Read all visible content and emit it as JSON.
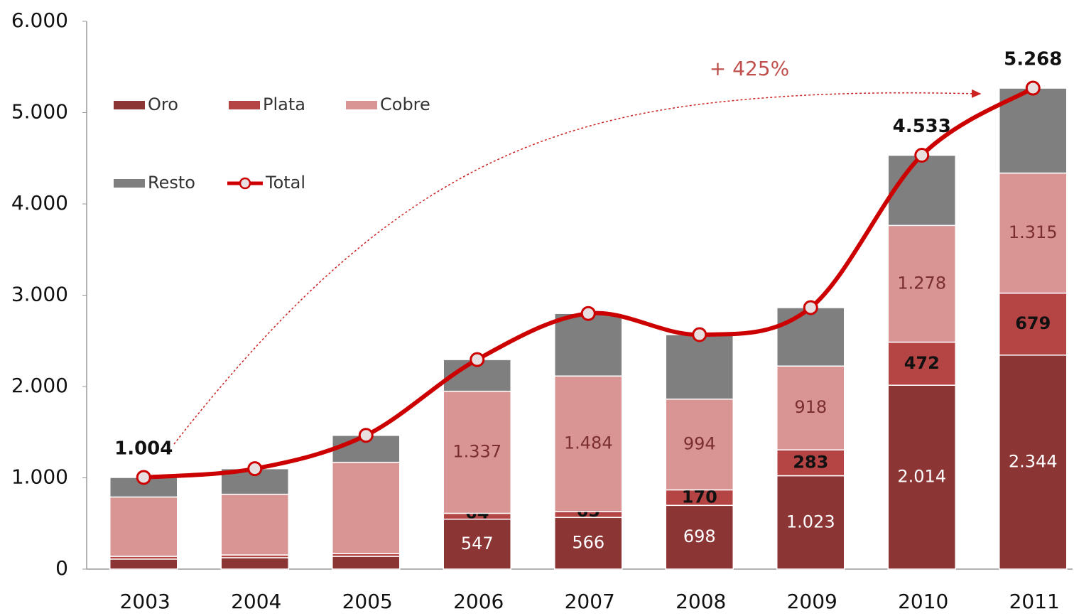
{
  "chart_data": {
    "type": "bar",
    "stacked": true,
    "categories": [
      "2003",
      "2004",
      "2005",
      "2006",
      "2007",
      "2008",
      "2009",
      "2010",
      "2011"
    ],
    "series": [
      {
        "name": "Oro",
        "color": "#8c3535",
        "values": [
          110,
          125,
          140,
          547,
          566,
          698,
          1023,
          2014,
          2344
        ],
        "value_labels": [
          null,
          null,
          null,
          "547",
          "566",
          "698",
          "1.023",
          "2.014",
          "2.344"
        ]
      },
      {
        "name": "Plata",
        "color": "#b54545",
        "values": [
          30,
          30,
          30,
          64,
          65,
          170,
          283,
          472,
          679
        ],
        "value_labels": [
          null,
          null,
          null,
          "64",
          "65",
          "170",
          "283",
          "472",
          "679"
        ]
      },
      {
        "name": "Cobre",
        "color": "#d99594",
        "values": [
          650,
          665,
          1000,
          1337,
          1484,
          994,
          918,
          1278,
          1315
        ],
        "value_labels": [
          null,
          null,
          null,
          "1.337",
          "1.484",
          "994",
          "918",
          "1.278",
          "1.315"
        ]
      },
      {
        "name": "Resto",
        "color": "#7f7f7f",
        "values": [
          214,
          280,
          295,
          347,
          685,
          706,
          640,
          769,
          930
        ]
      },
      {
        "name": "Total",
        "type": "line",
        "color": "#cc0000",
        "values": [
          1004,
          1100,
          1465,
          2295,
          2800,
          2568,
          2864,
          4533,
          5268
        ],
        "value_labels": [
          "1.004",
          null,
          null,
          null,
          null,
          null,
          null,
          "4.533",
          "5.268"
        ]
      }
    ],
    "annotations": [
      "+ 425%"
    ],
    "ylim": [
      0,
      6000
    ],
    "yticks": [
      0,
      {
        "value": 1000,
        "label": "1.000"
      },
      {
        "value": 2000,
        "label": "2.000"
      },
      {
        "value": 3000,
        "label": "3.000"
      },
      {
        "value": 4000,
        "label": "4.000"
      },
      {
        "value": 5000,
        "label": "5.000"
      },
      {
        "value": 6000,
        "label": "6.000"
      }
    ],
    "legend": "top-left"
  }
}
